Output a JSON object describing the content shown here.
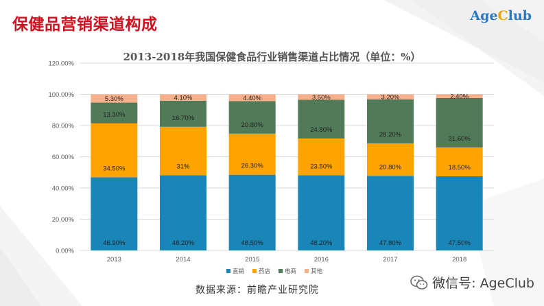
{
  "slide": {
    "title": "保健品营销渠道构成",
    "logo_main": "Age",
    "logo_accent": "C",
    "logo_tail": "lub",
    "source": "数据来源：前瞻产业研究院",
    "wechat": "微信号: AgeClub",
    "wechat_icon": "wechat-icon",
    "colors": {
      "title": "#d0101e",
      "logo": "#2b78c2",
      "logo_accent": "#e8a417"
    }
  },
  "chart_data": {
    "type": "bar",
    "stacked": true,
    "title": "2013-2018年我国保健食品行业销售渠道占比情况（单位：%）",
    "categories": [
      "2013",
      "2014",
      "2015",
      "2016",
      "2017",
      "2018"
    ],
    "ylim": [
      0,
      120
    ],
    "yticks": [
      "0.00%",
      "20.00%",
      "40.00%",
      "60.00%",
      "80.00%",
      "100.00%",
      "120.00%"
    ],
    "grid": true,
    "legend_position": "bottom",
    "series": [
      {
        "name": "直销",
        "color": "#1a86b8",
        "values": [
          46.9,
          48.2,
          48.5,
          48.2,
          47.8,
          47.5
        ],
        "labels": [
          "46.90%",
          "48.20%",
          "48.50%",
          "48.20%",
          "47.80%",
          "47.50%"
        ]
      },
      {
        "name": "药店",
        "color": "#ffa300",
        "values": [
          34.5,
          31,
          26.3,
          23.5,
          20.8,
          18.5
        ],
        "labels": [
          "34.50%",
          "31%",
          "26.30%",
          "23.50%",
          "20.80%",
          "18.50%"
        ]
      },
      {
        "name": "电商",
        "color": "#507a58",
        "values": [
          13.3,
          16.7,
          20.8,
          24.8,
          28.2,
          31.6
        ],
        "labels": [
          "13.30%",
          "16.70%",
          "20.80%",
          "24.80%",
          "28.20%",
          "31.60%"
        ]
      },
      {
        "name": "其他",
        "color": "#f7b08a",
        "values": [
          5.3,
          4.1,
          4.4,
          3.5,
          3.2,
          2.4
        ],
        "labels": [
          "5.30%",
          "4.10%",
          "4.40%",
          "3.50%",
          "3.20%",
          "2.40%"
        ]
      }
    ]
  }
}
